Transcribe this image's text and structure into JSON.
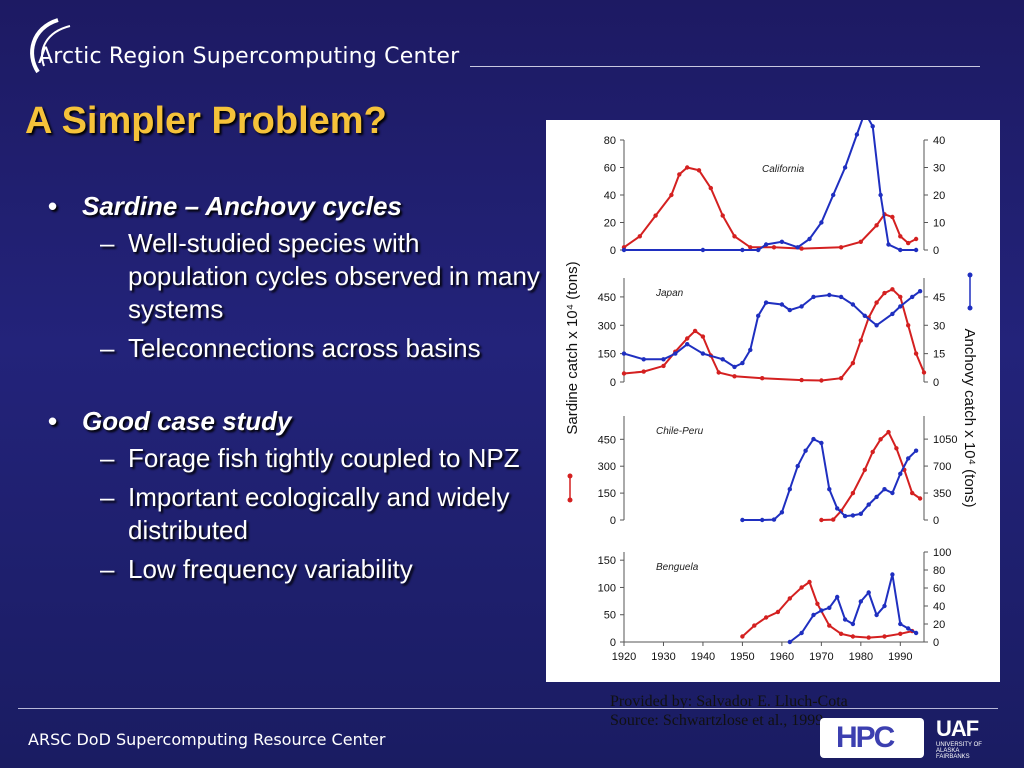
{
  "header": {
    "org": "Arctic Region Supercomputing Center",
    "logo_icon": "arc-swoosh-icon"
  },
  "slide": {
    "title": "A Simpler Problem?"
  },
  "bullets": [
    {
      "text": "Sardine – Anchovy cycles",
      "subs": [
        "Well-studied species with population cycles observed in many systems",
        "Teleconnections across basins"
      ]
    },
    {
      "text": "Good case study",
      "subs": [
        "Forage fish tightly coupled to NPZ",
        "Important ecologically and widely distributed",
        "Low frequency variability"
      ]
    }
  ],
  "credit": {
    "line1": "Provided by: Salvador E. Lluch-Cota",
    "line2": "Source: Schwartzlose et al., 1999"
  },
  "footer": {
    "text": "ARSC DoD Supercomputing Resource Center",
    "hpc_logo": "HPC",
    "uaf_logo": "UAF",
    "uaf_sub": "UNIVERSITY OF ALASKA FAIRBANKS"
  },
  "chart_data": {
    "type": "line",
    "ylabel_left": "Sardine catch x 10⁴ (tons)",
    "ylabel_right": "Anchovy catch x 10⁴ (tons)",
    "x_ticks": [
      1920,
      1930,
      1940,
      1950,
      1960,
      1970,
      1980,
      1990
    ],
    "xlim": [
      1920,
      1996
    ],
    "colors": {
      "sardine": "#d42020",
      "anchovy": "#1f2fc0"
    },
    "panels": [
      {
        "name": "California",
        "left_ticks": [
          0,
          20,
          40,
          60,
          80
        ],
        "left_lim": [
          0,
          80
        ],
        "right_ticks": [
          0,
          10,
          20,
          30,
          40
        ],
        "right_lim": [
          0,
          40
        ],
        "sardine": [
          [
            1920,
            2
          ],
          [
            1924,
            10
          ],
          [
            1928,
            25
          ],
          [
            1932,
            40
          ],
          [
            1934,
            55
          ],
          [
            1936,
            60
          ],
          [
            1939,
            58
          ],
          [
            1942,
            45
          ],
          [
            1945,
            25
          ],
          [
            1948,
            10
          ],
          [
            1952,
            2
          ],
          [
            1958,
            2
          ],
          [
            1965,
            1
          ],
          [
            1975,
            2
          ],
          [
            1980,
            6
          ],
          [
            1984,
            18
          ],
          [
            1986,
            26
          ],
          [
            1988,
            24
          ],
          [
            1990,
            10
          ],
          [
            1992,
            5
          ],
          [
            1994,
            8
          ]
        ],
        "anchovy": [
          [
            1920,
            0
          ],
          [
            1940,
            0
          ],
          [
            1950,
            0
          ],
          [
            1954,
            0
          ],
          [
            1956,
            2
          ],
          [
            1960,
            3
          ],
          [
            1964,
            1
          ],
          [
            1967,
            4
          ],
          [
            1970,
            10
          ],
          [
            1973,
            20
          ],
          [
            1976,
            30
          ],
          [
            1979,
            42
          ],
          [
            1981,
            50
          ],
          [
            1983,
            45
          ],
          [
            1985,
            20
          ],
          [
            1987,
            2
          ],
          [
            1990,
            0
          ],
          [
            1994,
            0
          ]
        ]
      },
      {
        "name": "Japan",
        "left_ticks": [
          0,
          150,
          300,
          450
        ],
        "left_lim": [
          0,
          550
        ],
        "right_ticks": [
          0,
          15,
          30,
          45
        ],
        "right_lim": [
          0,
          55
        ],
        "sardine": [
          [
            1920,
            45
          ],
          [
            1925,
            55
          ],
          [
            1930,
            85
          ],
          [
            1933,
            160
          ],
          [
            1936,
            230
          ],
          [
            1938,
            270
          ],
          [
            1940,
            240
          ],
          [
            1942,
            140
          ],
          [
            1944,
            50
          ],
          [
            1948,
            30
          ],
          [
            1955,
            20
          ],
          [
            1965,
            10
          ],
          [
            1970,
            8
          ],
          [
            1975,
            20
          ],
          [
            1978,
            100
          ],
          [
            1980,
            220
          ],
          [
            1982,
            340
          ],
          [
            1984,
            420
          ],
          [
            1986,
            470
          ],
          [
            1988,
            490
          ],
          [
            1990,
            450
          ],
          [
            1992,
            300
          ],
          [
            1994,
            150
          ],
          [
            1996,
            50
          ]
        ],
        "anchovy": [
          [
            1920,
            15
          ],
          [
            1925,
            12
          ],
          [
            1930,
            12
          ],
          [
            1933,
            15
          ],
          [
            1936,
            20
          ],
          [
            1940,
            15
          ],
          [
            1945,
            12
          ],
          [
            1948,
            8
          ],
          [
            1950,
            10
          ],
          [
            1952,
            17
          ],
          [
            1954,
            35
          ],
          [
            1956,
            42
          ],
          [
            1960,
            41
          ],
          [
            1962,
            38
          ],
          [
            1965,
            40
          ],
          [
            1968,
            45
          ],
          [
            1972,
            46
          ],
          [
            1975,
            45
          ],
          [
            1978,
            41
          ],
          [
            1981,
            35
          ],
          [
            1984,
            30
          ],
          [
            1988,
            36
          ],
          [
            1990,
            40
          ],
          [
            1993,
            45
          ],
          [
            1995,
            48
          ]
        ]
      },
      {
        "name": "Chile-Peru",
        "left_ticks": [
          0,
          150,
          300,
          450
        ],
        "left_lim": [
          0,
          580
        ],
        "right_ticks": [
          0,
          350,
          700,
          1050
        ],
        "right_lim": [
          0,
          1350
        ],
        "sardine": [
          [
            1970,
            0
          ],
          [
            1973,
            2
          ],
          [
            1975,
            50
          ],
          [
            1978,
            150
          ],
          [
            1981,
            280
          ],
          [
            1983,
            380
          ],
          [
            1985,
            450
          ],
          [
            1987,
            490
          ],
          [
            1989,
            400
          ],
          [
            1991,
            280
          ],
          [
            1993,
            150
          ],
          [
            1995,
            120
          ]
        ],
        "anchovy": [
          [
            1950,
            0
          ],
          [
            1955,
            0
          ],
          [
            1958,
            5
          ],
          [
            1960,
            100
          ],
          [
            1962,
            400
          ],
          [
            1964,
            700
          ],
          [
            1966,
            900
          ],
          [
            1968,
            1050
          ],
          [
            1970,
            1000
          ],
          [
            1972,
            400
          ],
          [
            1974,
            150
          ],
          [
            1976,
            50
          ],
          [
            1978,
            60
          ],
          [
            1980,
            80
          ],
          [
            1982,
            200
          ],
          [
            1984,
            300
          ],
          [
            1986,
            400
          ],
          [
            1988,
            350
          ],
          [
            1990,
            600
          ],
          [
            1992,
            800
          ],
          [
            1994,
            900
          ]
        ]
      },
      {
        "name": "Benguela",
        "left_ticks": [
          0,
          50,
          100,
          150
        ],
        "left_lim": [
          0,
          165
        ],
        "right_ticks": [
          0,
          20,
          40,
          60,
          80,
          100
        ],
        "right_lim": [
          0,
          100
        ],
        "sardine": [
          [
            1950,
            10
          ],
          [
            1953,
            30
          ],
          [
            1956,
            45
          ],
          [
            1959,
            55
          ],
          [
            1962,
            80
          ],
          [
            1965,
            100
          ],
          [
            1967,
            110
          ],
          [
            1969,
            70
          ],
          [
            1972,
            30
          ],
          [
            1975,
            15
          ],
          [
            1978,
            10
          ],
          [
            1982,
            8
          ],
          [
            1986,
            10
          ],
          [
            1990,
            15
          ],
          [
            1993,
            20
          ]
        ],
        "anchovy": [
          [
            1962,
            0
          ],
          [
            1965,
            10
          ],
          [
            1968,
            30
          ],
          [
            1970,
            35
          ],
          [
            1972,
            38
          ],
          [
            1974,
            50
          ],
          [
            1976,
            25
          ],
          [
            1978,
            20
          ],
          [
            1980,
            45
          ],
          [
            1982,
            55
          ],
          [
            1984,
            30
          ],
          [
            1986,
            40
          ],
          [
            1988,
            75
          ],
          [
            1990,
            20
          ],
          [
            1992,
            15
          ],
          [
            1994,
            10
          ]
        ]
      }
    ]
  }
}
